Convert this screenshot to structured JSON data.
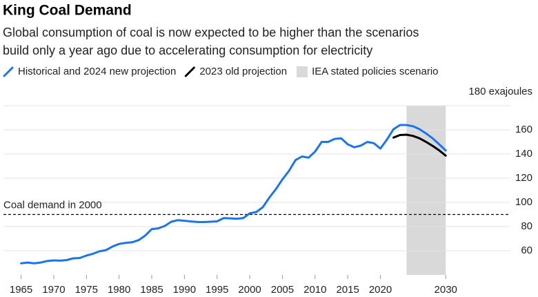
{
  "chart_data": {
    "type": "line",
    "title": "King Coal Demand",
    "subtitle": [
      "Global consumption of coal is now expected to be higher than the scenarios",
      "build only a year ago due to accelerating consumption for electricity"
    ],
    "x": [
      1965,
      1966,
      1967,
      1968,
      1969,
      1970,
      1971,
      1972,
      1973,
      1974,
      1975,
      1976,
      1977,
      1978,
      1979,
      1980,
      1981,
      1982,
      1983,
      1984,
      1985,
      1986,
      1987,
      1988,
      1989,
      1990,
      1991,
      1992,
      1993,
      1994,
      1995,
      1996,
      1997,
      1998,
      1999,
      2000,
      2001,
      2002,
      2003,
      2004,
      2005,
      2006,
      2007,
      2008,
      2009,
      2010,
      2011,
      2012,
      2013,
      2014,
      2015,
      2016,
      2017,
      2018,
      2019,
      2020,
      2021,
      2022,
      2023,
      2024,
      2025,
      2026,
      2027,
      2028,
      2029,
      2030
    ],
    "series": [
      {
        "name": "Historical and 2024 new projection",
        "color": "#1a73f0",
        "values": [
          49.6,
          50.2,
          49.6,
          50.2,
          51.5,
          52,
          51.8,
          52.3,
          53.7,
          54,
          56,
          57.5,
          59.5,
          60.5,
          63.5,
          65.6,
          66.5,
          67,
          68.8,
          72.5,
          77.9,
          78.5,
          80.5,
          84,
          85.3,
          84.8,
          84.2,
          83.8,
          83.7,
          84,
          84.3,
          87,
          86.8,
          86.4,
          87,
          91,
          92,
          96,
          104,
          111,
          119,
          126,
          135,
          138,
          137,
          142,
          150,
          150,
          152.5,
          153,
          148,
          145.6,
          147,
          150,
          149,
          144.5,
          152,
          160.5,
          164,
          164,
          163,
          160.5,
          157,
          153,
          148,
          143
        ]
      },
      {
        "name": "2023 old projection",
        "color": "#000000",
        "values": [
          null,
          null,
          null,
          null,
          null,
          null,
          null,
          null,
          null,
          null,
          null,
          null,
          null,
          null,
          null,
          null,
          null,
          null,
          null,
          null,
          null,
          null,
          null,
          null,
          null,
          null,
          null,
          null,
          null,
          null,
          null,
          null,
          null,
          null,
          null,
          null,
          null,
          null,
          null,
          null,
          null,
          null,
          null,
          null,
          null,
          null,
          null,
          null,
          null,
          null,
          null,
          null,
          null,
          null,
          null,
          null,
          null,
          153.6,
          155.7,
          156,
          155,
          153,
          150,
          146.7,
          143,
          138.7
        ]
      }
    ],
    "shaded": {
      "name": "IEA stated policies scenario",
      "color": "#d9d9d9",
      "x": [
        2024,
        2030
      ]
    },
    "annotation": {
      "text": "Coal demand in 2000",
      "y": 90
    },
    "xlim": [
      1962.3,
      2039.9
    ],
    "xticks": [
      1965,
      1970,
      1975,
      1980,
      1985,
      1990,
      1995,
      2000,
      2005,
      2010,
      2015,
      2020,
      2030
    ],
    "ylim": [
      40,
      180
    ],
    "yticks": [
      60,
      80,
      100,
      120,
      140,
      160,
      {
        "value": 180,
        "label": "180 exajoules"
      }
    ],
    "grid": true
  }
}
